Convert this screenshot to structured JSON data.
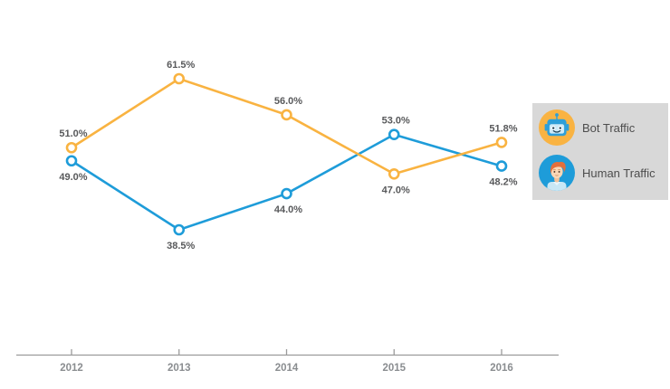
{
  "colors": {
    "bot": "#F9B341",
    "human": "#1E9CD9",
    "marker_fill": "#FFFFFF",
    "data_label": "#58595B",
    "axis_line": "#9B9B9B",
    "tick_label": "#8A8D90",
    "legend_bg": "#D8D8D8",
    "legend_text": "#4D4D4D"
  },
  "chart_data": {
    "type": "line",
    "title": "",
    "categories": [
      "2012",
      "2013",
      "2014",
      "2015",
      "2016"
    ],
    "series": [
      {
        "name": "Bot Traffic",
        "color_key": "bot",
        "values": [
          51.0,
          61.5,
          56.0,
          47.0,
          51.8
        ]
      },
      {
        "name": "Human Traffic",
        "color_key": "human",
        "values": [
          49.0,
          38.5,
          44.0,
          53.0,
          48.2
        ]
      }
    ],
    "value_format": "percent_1dp",
    "data_labels": true,
    "ylim": [
      35,
      65
    ],
    "grid": false,
    "y_axis_visible": false,
    "legend_position": "right"
  },
  "legend": {
    "items": [
      {
        "label": "Bot Traffic",
        "icon": "robot-icon"
      },
      {
        "label": "Human Traffic",
        "icon": "person-icon"
      }
    ]
  }
}
